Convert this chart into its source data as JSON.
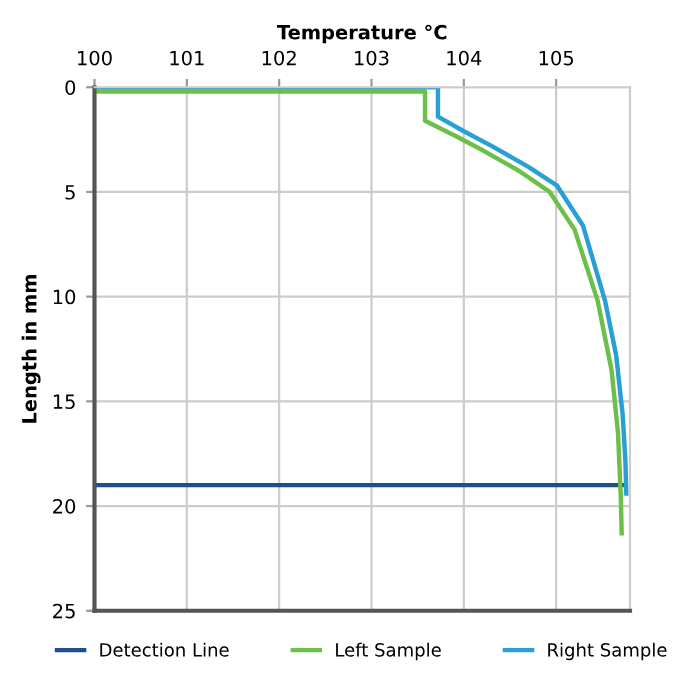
{
  "chart_data": {
    "type": "line",
    "xlabel": "Temperature °C",
    "ylabel": "Length in mm",
    "xlim": [
      100,
      105.8
    ],
    "xticks": [
      100,
      101,
      102,
      103,
      104,
      105
    ],
    "ylim": [
      25,
      0
    ],
    "yticks": [
      0,
      5,
      10,
      15,
      20,
      25
    ],
    "grid": true,
    "legend": "bottom",
    "series": [
      {
        "name": "Detection Line",
        "color": "#1f4e8c",
        "x": [
          100,
          105.75
        ],
        "values": [
          19,
          19
        ]
      },
      {
        "name": "Left Sample",
        "color": "#6cc04a",
        "x": [
          100,
          103.58,
          103.58,
          103.9,
          104.2,
          104.6,
          104.93,
          105.2,
          105.45,
          105.6,
          105.67,
          105.7,
          105.71
        ],
        "values": [
          0.2,
          0.2,
          1.6,
          2.3,
          3.0,
          4.0,
          5.0,
          6.8,
          10.2,
          13.5,
          16.5,
          19.5,
          21.3
        ]
      },
      {
        "name": "Right Sample",
        "color": "#2a9fd6",
        "x": [
          100,
          103.72,
          103.72,
          104.0,
          104.3,
          104.7,
          105.01,
          105.29,
          105.53,
          105.65,
          105.72,
          105.75,
          105.76
        ],
        "values": [
          0,
          0,
          1.4,
          2.1,
          2.8,
          3.8,
          4.7,
          6.6,
          10.2,
          12.8,
          15.6,
          17.8,
          19.4
        ]
      }
    ]
  }
}
